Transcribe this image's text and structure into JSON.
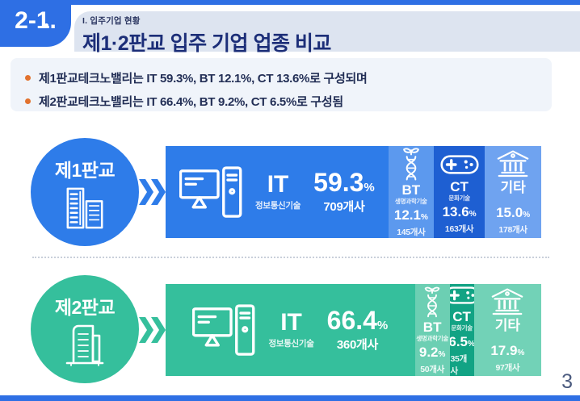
{
  "page": {
    "badge": "2-1.",
    "section_label": "I. 입주기업 현황",
    "title": "제1·2판교 입주 기업 업종 비교",
    "page_number": "3"
  },
  "summary": {
    "bullets": [
      "제1판교테크노밸리는 IT 59.3%, BT 12.1%, CT 13.6%로 구성되며",
      "제2판교테크노밸리는 IT 66.4%, BT 9.2%, CT 6.5%로 구성됨"
    ]
  },
  "colors": {
    "frame_blue": "#2e6fe4",
    "bar_blue": "#2e7ce9",
    "bar_blue_light": "#5c99ee",
    "bar_blue_dark": "#1e5fd2",
    "bar_blue_light2": "#6fa3f0",
    "bar_green": "#35bf9c",
    "bar_green_light": "#6ccfb3",
    "bar_green_dark": "#12a384",
    "bar_green_light2": "#72d2b7",
    "title_navy": "#1c2e78",
    "bullet_orange": "#e2722e",
    "header_band_gray": "#dde4f0",
    "summary_panel": "#f0f4fa"
  },
  "chart_data": [
    {
      "type": "bar",
      "stacked": true,
      "title": "제1판교",
      "categories": [
        "IT",
        "BT",
        "CT",
        "기타"
      ],
      "values": [
        59.3,
        12.1,
        13.6,
        15.0
      ],
      "counts": [
        709,
        145,
        163,
        178
      ],
      "unit": "%",
      "sublabels": [
        "정보통신기술",
        "생명과학기술",
        "문화기술",
        ""
      ]
    },
    {
      "type": "bar",
      "stacked": true,
      "title": "제2판교",
      "categories": [
        "IT",
        "BT",
        "CT",
        "기타"
      ],
      "values": [
        66.4,
        9.2,
        6.5,
        17.9
      ],
      "counts": [
        360,
        50,
        35,
        97
      ],
      "unit": "%",
      "sublabels": [
        "정보통신기술",
        "생명과학기술",
        "문화기술",
        ""
      ]
    }
  ],
  "rows": [
    {
      "name": "제1판교",
      "segments": [
        {
          "code": "IT",
          "sub": "정보통신기술",
          "pct": "59.3",
          "unit": "%",
          "count": "709개사"
        },
        {
          "code": "BT",
          "sub": "생명과학기술",
          "pct": "12.1",
          "unit": "%",
          "count": "145개사"
        },
        {
          "code": "CT",
          "sub": "문화기술",
          "pct": "13.6",
          "unit": "%",
          "count": "163개사"
        },
        {
          "code": "기타",
          "sub": "",
          "pct": "15.0",
          "unit": "%",
          "count": "178개사"
        }
      ]
    },
    {
      "name": "제2판교",
      "segments": [
        {
          "code": "IT",
          "sub": "정보통신기술",
          "pct": "66.4",
          "unit": "%",
          "count": "360개사"
        },
        {
          "code": "BT",
          "sub": "생명과학기술",
          "pct": "9.2",
          "unit": "%",
          "count": "50개사"
        },
        {
          "code": "CT",
          "sub": "문화기술",
          "pct": "6.5",
          "unit": "%",
          "count": "35개사"
        },
        {
          "code": "기타",
          "sub": "",
          "pct": "17.9",
          "unit": "%",
          "count": "97개사"
        }
      ]
    }
  ]
}
